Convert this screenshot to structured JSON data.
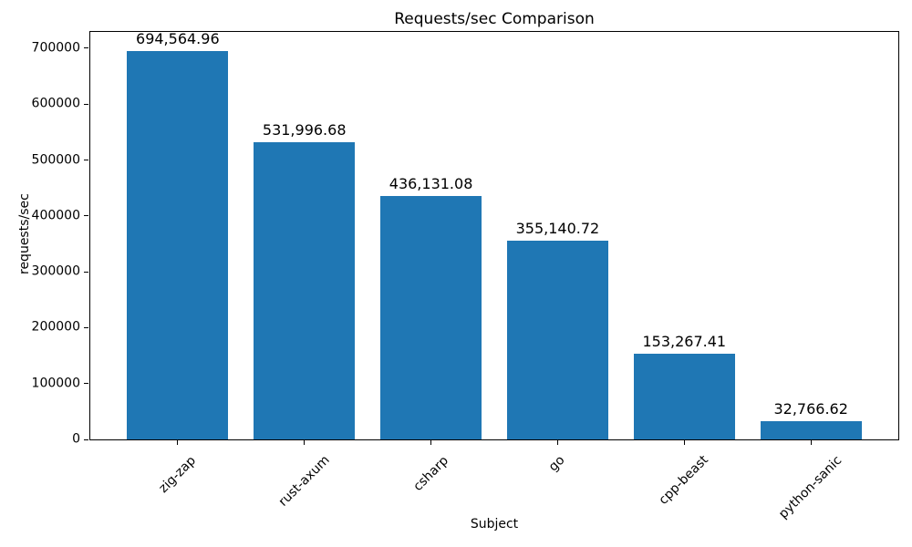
{
  "chart_data": {
    "type": "bar",
    "title": "Requests/sec Comparison",
    "xlabel": "Subject",
    "ylabel": "requests/sec",
    "categories": [
      "zig-zap",
      "rust-axum",
      "csharp",
      "go",
      "cpp-beast",
      "python-sanic"
    ],
    "values": [
      694564.96,
      531996.68,
      436131.08,
      355140.72,
      153267.41,
      32766.62
    ],
    "value_labels": [
      "694,564.96",
      "531,996.68",
      "436,131.08",
      "355,140.72",
      "153,267.41",
      "32,766.62"
    ],
    "bar_color": "#1f77b4",
    "bar_width_fraction": 0.8,
    "xlim": [
      -0.69,
      5.69
    ],
    "ylim": [
      0,
      729293
    ],
    "yticks": {
      "values": [
        0,
        100000,
        200000,
        300000,
        400000,
        500000,
        600000,
        700000
      ],
      "labels": [
        "0",
        "100000",
        "200000",
        "300000",
        "400000",
        "500000",
        "600000",
        "700000"
      ]
    },
    "grid": false,
    "legend": false
  }
}
